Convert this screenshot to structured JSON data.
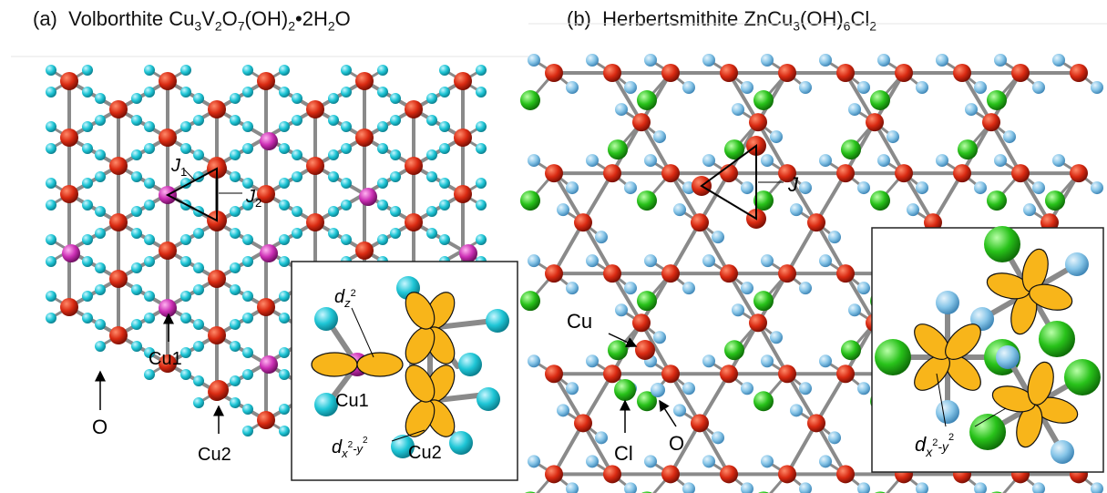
{
  "panel_a": {
    "label": "(a)",
    "name": "Volborthite",
    "formula": [
      {
        "t": "Cu"
      },
      {
        "t": "3",
        "s": "sub"
      },
      {
        "t": "V"
      },
      {
        "t": "2",
        "s": "sub"
      },
      {
        "t": "O"
      },
      {
        "t": "7",
        "s": "sub"
      },
      {
        "t": "(OH)"
      },
      {
        "t": "2",
        "s": "sub"
      },
      {
        "t": "•2H"
      },
      {
        "t": "2",
        "s": "sub"
      },
      {
        "t": "O"
      }
    ],
    "labels": {
      "j1": "J",
      "j1_sub": "1",
      "j2": "J",
      "j2_sub": "2",
      "cu1": "Cu1",
      "cu2": "Cu2",
      "o": "O"
    },
    "inset": {
      "dz2": "d",
      "dz2_sub": "z",
      "dz2_sup": "2",
      "dx2y2": "d",
      "dx2y2_sub_1": "x",
      "dx2y2_sup": "2",
      "dx2y2_sub_2": "-y",
      "dx2y2_sup_2": "2",
      "cu1": "Cu1",
      "cu2": "Cu2"
    }
  },
  "panel_b": {
    "label": "(b)",
    "name": "Herbertsmithite",
    "formula": [
      {
        "t": "ZnCu"
      },
      {
        "t": "3",
        "s": "sub"
      },
      {
        "t": "(OH)"
      },
      {
        "t": "6",
        "s": "sub"
      },
      {
        "t": "Cl"
      },
      {
        "t": "2",
        "s": "sub"
      }
    ],
    "labels": {
      "j": "J",
      "cu": "Cu",
      "cl": "Cl",
      "o": "O"
    },
    "inset": {
      "dx2y2": "d",
      "dx2y2_sub_1": "x",
      "dx2y2_sup": "2",
      "dx2y2_sub_2": "-y",
      "dx2y2_sup_2": "2"
    }
  },
  "colors": {
    "cu": "#d92a12",
    "o_a": "#1fc6d6",
    "o_b": "#86c5e8",
    "v": "#cc2fb5",
    "cl": "#28c21a",
    "bond": "#8a8a8a",
    "orbital": "#f8b51a"
  }
}
